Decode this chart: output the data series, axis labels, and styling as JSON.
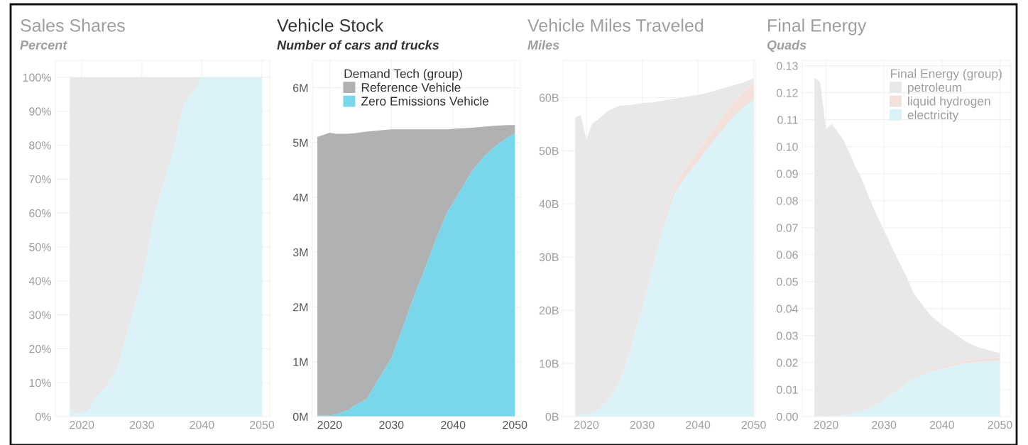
{
  "chart_data": [
    {
      "type": "area",
      "title": "Sales Shares",
      "subtitle": "Percent",
      "stacked": true,
      "grid": true,
      "legend": false,
      "x": [
        2018,
        2019,
        2021,
        2022,
        2024,
        2026,
        2028,
        2030,
        2031,
        2032,
        2033,
        2035,
        2037,
        2039,
        2040,
        2045,
        2050
      ],
      "series": [
        {
          "color": "#dbf2f8",
          "values": [
            2.3,
            0.9,
            1.4,
            5,
            8.7,
            14.3,
            27.6,
            40,
            49,
            58.6,
            65,
            76.7,
            92,
            97,
            100,
            100,
            100
          ]
        },
        {
          "color": "#e8e8e8",
          "values": [
            97.7,
            99.1,
            98.6,
            95,
            91.3,
            85.7,
            72.4,
            60,
            51,
            41.4,
            35,
            23.3,
            8,
            3,
            0,
            0,
            0
          ]
        }
      ],
      "xlim": [
        2015.6,
        2051.3
      ],
      "xticks": [
        2020,
        2030,
        2040,
        2050
      ],
      "ylim": [
        0,
        105
      ],
      "yticks": [
        {
          "value": 0,
          "label": "0%"
        },
        {
          "value": 10,
          "label": "10%"
        },
        {
          "value": 20,
          "label": "20%"
        },
        {
          "value": 30,
          "label": "30%"
        },
        {
          "value": 40,
          "label": "40%"
        },
        {
          "value": 50,
          "label": "50%"
        },
        {
          "value": 60,
          "label": "60%"
        },
        {
          "value": 70,
          "label": "70%"
        },
        {
          "value": 80,
          "label": "80%"
        },
        {
          "value": 90,
          "label": "90%"
        },
        {
          "value": 100,
          "label": "100%"
        }
      ]
    },
    {
      "type": "area",
      "title": "Vehicle Stock",
      "subtitle": "Number of cars and trucks",
      "stacked": true,
      "grid": true,
      "legend": "top",
      "legend_title": "Demand Tech (group)",
      "x": [
        2018,
        2020,
        2021,
        2023,
        2024,
        2026,
        2028,
        2030,
        2032,
        2034,
        2035,
        2037,
        2039,
        2040,
        2043,
        2045,
        2047,
        2049,
        2050
      ],
      "series": [
        {
          "name": "Zero Emissions Vehicle",
          "color": "#78d7ea",
          "values": [
            0.02,
            0.02,
            0.04,
            0.12,
            0.2,
            0.32,
            0.7,
            1.07,
            1.67,
            2.3,
            2.57,
            3.17,
            3.72,
            3.9,
            4.47,
            4.75,
            4.95,
            5.1,
            5.17
          ]
        },
        {
          "name": "Reference Vehicle",
          "color": "#b0b1b3",
          "values": [
            5.08,
            5.16,
            5.12,
            5.04,
            4.97,
            4.88,
            4.52,
            4.17,
            3.57,
            2.94,
            2.67,
            2.07,
            1.52,
            1.35,
            0.8,
            0.54,
            0.36,
            0.22,
            0.15
          ]
        }
      ],
      "xlim": [
        2017.2,
        2050.9
      ],
      "xticks": [
        2020,
        2030,
        2040,
        2050
      ],
      "ylim": [
        0,
        6.5
      ],
      "yticks": [
        {
          "value": 0,
          "label": "0M"
        },
        {
          "value": 1,
          "label": "1M"
        },
        {
          "value": 2,
          "label": "2M"
        },
        {
          "value": 3,
          "label": "3M"
        },
        {
          "value": 4,
          "label": "4M"
        },
        {
          "value": 5,
          "label": "5M"
        },
        {
          "value": 6,
          "label": "6M"
        }
      ]
    },
    {
      "type": "area",
      "title": "Vehicle Miles Traveled",
      "subtitle": "Miles",
      "stacked": true,
      "grid": true,
      "legend": false,
      "x": [
        2018,
        2019,
        2020,
        2021,
        2022,
        2024,
        2026,
        2028,
        2030,
        2032,
        2034,
        2036,
        2038,
        2040,
        2042,
        2044,
        2046,
        2048,
        2050
      ],
      "series": [
        {
          "color": "#dbf2f8",
          "values": [
            0.3,
            0.3,
            0.4,
            0.6,
            1.1,
            3.1,
            6.6,
            12.7,
            20.6,
            28.6,
            36.6,
            42.4,
            45.4,
            48.0,
            50.8,
            53.4,
            56.0,
            58.1,
            59.6
          ]
        },
        {
          "color": "#f3e0db",
          "values": [
            0,
            0,
            0,
            0,
            0,
            0.1,
            0.2,
            0.3,
            0.6,
            0.8,
            1.0,
            1.3,
            1.6,
            1.9,
            2.2,
            2.4,
            2.6,
            2.8,
            3.1
          ]
        },
        {
          "color": "#e8e8e8",
          "values": [
            56.0,
            56.4,
            51.7,
            54.5,
            54.7,
            54.4,
            51.7,
            45.6,
            37.8,
            29.7,
            21.9,
            16.1,
            13.2,
            10.6,
            8.0,
            5.8,
            3.6,
            1.9,
            0.9
          ]
        }
      ],
      "xlim": [
        2015.8,
        2050.3
      ],
      "xticks": [
        2020,
        2030,
        2040,
        2050
      ],
      "ylim": [
        0,
        67
      ],
      "yticks": [
        {
          "value": 0,
          "label": "0B"
        },
        {
          "value": 10,
          "label": "10B"
        },
        {
          "value": 20,
          "label": "20B"
        },
        {
          "value": 30,
          "label": "30B"
        },
        {
          "value": 40,
          "label": "40B"
        },
        {
          "value": 50,
          "label": "50B"
        },
        {
          "value": 60,
          "label": "60B"
        }
      ]
    },
    {
      "type": "area",
      "title": "Final Energy",
      "subtitle": "Quads",
      "stacked": true,
      "grid": true,
      "legend": "top right",
      "legend_title": "Final Energy (group)",
      "x": [
        2018,
        2019,
        2020,
        2021,
        2022,
        2023,
        2024,
        2025,
        2026,
        2028,
        2030,
        2032,
        2034,
        2035,
        2036,
        2038,
        2040,
        2042,
        2044,
        2046,
        2048,
        2050
      ],
      "series": [
        {
          "name": "electricity",
          "color": "#dbf2f8",
          "values": [
            0.0002,
            0.0003,
            0.0001,
            0.0002,
            0.0003,
            0.0005,
            0.0008,
            0.0013,
            0.0018,
            0.0035,
            0.006,
            0.0093,
            0.0125,
            0.014,
            0.0152,
            0.0168,
            0.0178,
            0.0188,
            0.0198,
            0.0203,
            0.0205,
            0.0208
          ]
        },
        {
          "name": "liquid hydrogen",
          "color": "#f3e0db",
          "values": [
            0,
            0,
            0,
            0,
            0,
            0,
            0,
            0,
            0.0001,
            0.0001,
            0.0002,
            0.0003,
            0.0004,
            0.0004,
            0.0005,
            0.0006,
            0.0007,
            0.0007,
            0.0008,
            0.001,
            0.0011,
            0.0012
          ]
        },
        {
          "name": "petroleum",
          "color": "#e8e8e8",
          "values": [
            0.1254,
            0.1236,
            0.1065,
            0.1082,
            0.1053,
            0.102,
            0.0972,
            0.0916,
            0.0869,
            0.0746,
            0.0628,
            0.0503,
            0.0384,
            0.0318,
            0.0274,
            0.0202,
            0.0155,
            0.0115,
            0.0073,
            0.0046,
            0.003,
            0.0016
          ]
        }
      ],
      "xlim": [
        2015.9,
        2051.9
      ],
      "xticks": [
        2020,
        2030,
        2040,
        2050
      ],
      "ylim": [
        0,
        0.132
      ],
      "yticks": [
        {
          "value": 0,
          "label": "0.00"
        },
        0.01,
        0.02,
        0.03,
        0.04,
        0.05,
        0.06,
        0.07,
        0.08,
        0.09,
        {
          "value": 0.1,
          "label": "0.10"
        },
        0.11,
        0.12,
        0.13
      ]
    }
  ]
}
